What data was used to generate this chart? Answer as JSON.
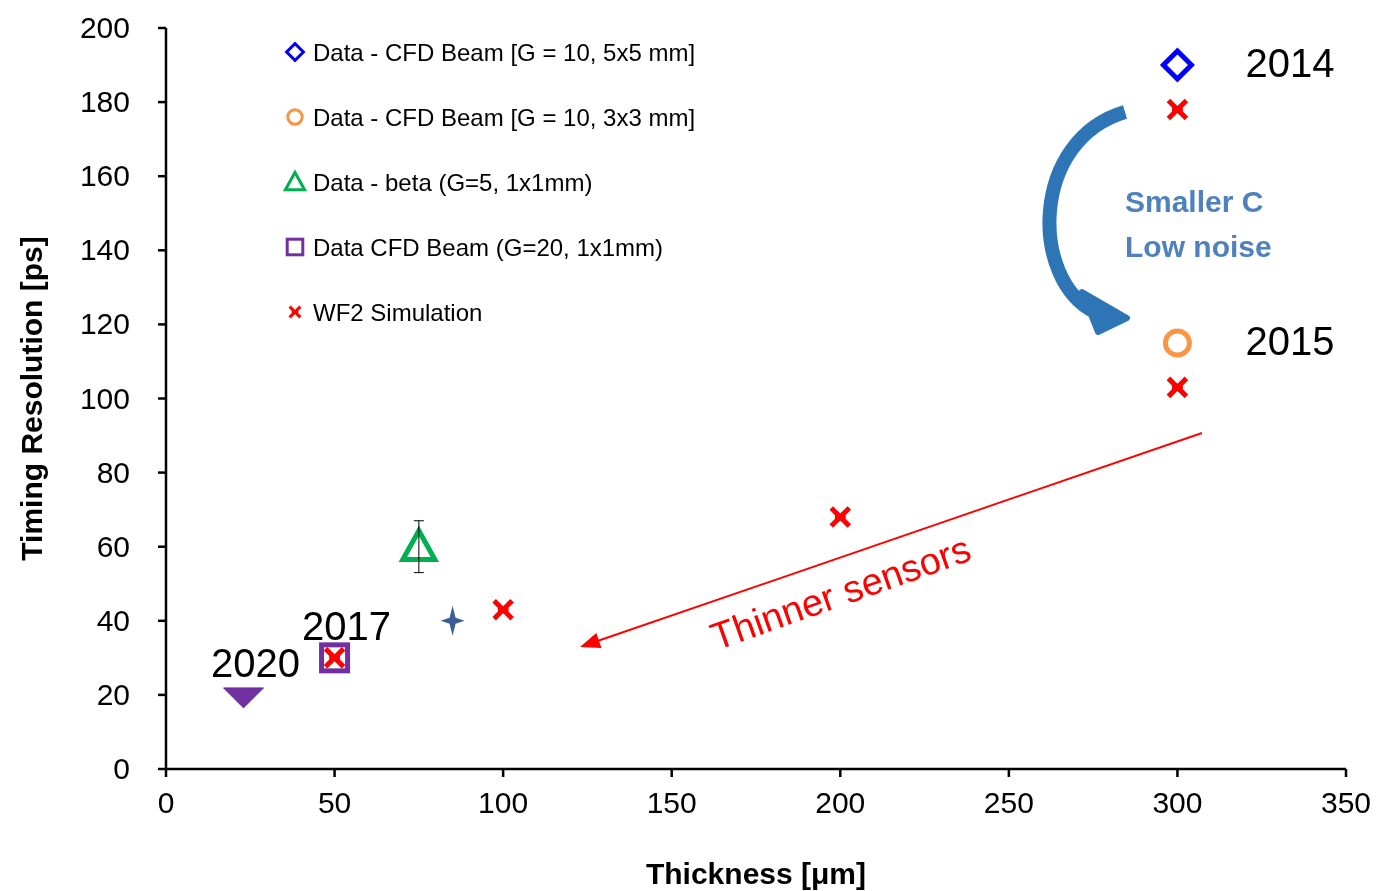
{
  "chart_data": {
    "type": "scatter",
    "xlabel": "Thickness [μm]",
    "ylabel": "Timing Resolution [ps]",
    "xlim": [
      0,
      350
    ],
    "xticks": [
      0,
      50,
      100,
      150,
      200,
      250,
      300,
      350
    ],
    "ylim": [
      0,
      200
    ],
    "yticks": [
      0,
      20,
      40,
      60,
      80,
      100,
      120,
      140,
      160,
      180,
      200
    ],
    "grid": false,
    "legend": "top left",
    "series": [
      {
        "name": "Data - CFD Beam [G = 10, 5x5 mm]",
        "color": "#0000ff",
        "marker": "diamond",
        "x": [
          300
        ],
        "values": [
          190
        ]
      },
      {
        "name": "Data - CFD Beam [G = 10, 3x3 mm]",
        "color": "#f79646",
        "marker": "circle",
        "x": [
          300
        ],
        "values": [
          115
        ]
      },
      {
        "name": "Data - beta (G=5, 1x1mm)",
        "color": "#00b050",
        "marker": "triangle",
        "x": [
          75
        ],
        "values": [
          60
        ],
        "errors": [
          7
        ]
      },
      {
        "name": "Data CFD Beam (G=20, 1x1mm)",
        "color": "#7030a0",
        "marker": "square",
        "x": [
          50
        ],
        "values": [
          30
        ]
      },
      {
        "name": "WF2 Simulation",
        "color": "#ff0000",
        "marker": "cross",
        "x": [
          300,
          300,
          200,
          100,
          50
        ],
        "values": [
          178,
          103,
          68,
          43,
          30
        ]
      },
      {
        "color": "#3a5f95",
        "marker": "star",
        "x": [
          85
        ],
        "values": [
          40
        ]
      },
      {
        "color": "#7030a0",
        "marker": "triangle",
        "x": [
          23
        ],
        "values": [
          20
        ]
      }
    ],
    "annotations": [
      {
        "text": "2014",
        "x": 300,
        "y": 190
      },
      {
        "text": "2015",
        "x": 300,
        "y": 115
      },
      {
        "text": "2017",
        "x": 50,
        "y": 30
      },
      {
        "text": "2020",
        "x": 23,
        "y": 20
      },
      "Smaller C\nLow noise",
      "Thinner sensors"
    ]
  }
}
